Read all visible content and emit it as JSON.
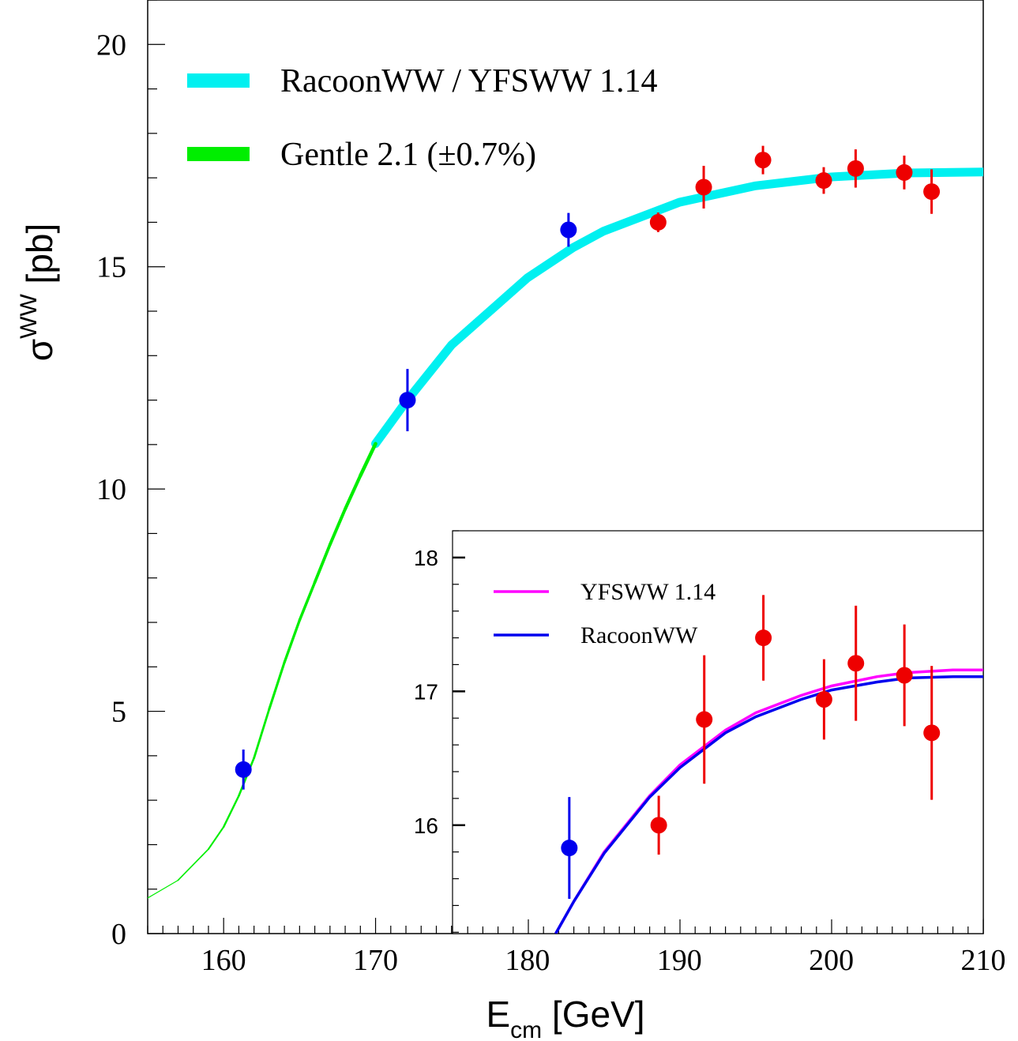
{
  "chart_data": [
    {
      "type": "scatter",
      "x_ticks": [
        "160",
        "170",
        "180",
        "190",
        "200",
        "210"
      ],
      "y_ticks": [
        "0",
        "5",
        "10",
        "15",
        "20"
      ],
      "xlim": [
        155,
        210
      ],
      "ylim": [
        0,
        21
      ],
      "xlabel": {
        "main": "E",
        "sub": "cm",
        "unit": " [GeV]"
      },
      "ylabel": {
        "main": "σ",
        "sup": "WW",
        "unit": " [pb]"
      },
      "grid": false,
      "legend": [
        {
          "label": "RacoonWW / YFSWW 1.14",
          "color": "#00f0f0"
        },
        {
          "label": "Gentle 2.1 (±0.7%)",
          "color": "#00ee00"
        }
      ],
      "series": [
        {
          "name": "RacoonWW / YFSWW 1.14",
          "kind": "band",
          "color": "#00f0f0",
          "x": [
            170,
            172,
            175,
            180,
            183,
            185,
            190,
            195,
            200,
            205,
            210
          ],
          "y": [
            11.02,
            11.96,
            13.24,
            14.75,
            15.43,
            15.8,
            16.45,
            16.82,
            17.02,
            17.11,
            17.13
          ]
        },
        {
          "name": "Gentle 2.1 (±0.7%)",
          "kind": "line",
          "color": "#00ee00",
          "x": [
            155,
            157,
            159,
            160,
            161,
            162,
            163,
            164,
            165,
            166,
            167,
            168,
            169,
            170
          ],
          "y": [
            0.8,
            1.2,
            1.9,
            2.4,
            3.1,
            3.95,
            5.05,
            6.1,
            7.05,
            7.9,
            8.75,
            9.55,
            10.3,
            11.02
          ]
        },
        {
          "name": "blue data",
          "kind": "points",
          "color": "#0000ee",
          "x": [
            161.3,
            172.1,
            182.7
          ],
          "y": [
            3.69,
            12.0,
            15.83
          ],
          "err": [
            0.45,
            0.7,
            0.38
          ]
        },
        {
          "name": "red data",
          "kind": "points",
          "color": "#ee0000",
          "x": [
            188.6,
            191.6,
            195.5,
            199.5,
            201.6,
            204.8,
            206.6
          ],
          "y": [
            16.0,
            16.79,
            17.4,
            16.94,
            17.21,
            17.12,
            16.69
          ],
          "err": [
            0.22,
            0.48,
            0.32,
            0.3,
            0.43,
            0.38,
            0.5
          ]
        }
      ]
    },
    {
      "type": "scatter",
      "y_ticks": [
        "16",
        "17",
        "18"
      ],
      "xlim": [
        175,
        210
      ],
      "ylim": [
        15.19,
        18.2
      ],
      "grid": false,
      "legend": [
        {
          "label": "YFSWW 1.14",
          "color": "#ff00ff"
        },
        {
          "label": "RacoonWW",
          "color": "#0000ee"
        }
      ],
      "series": [
        {
          "name": "YFSWW 1.14",
          "kind": "line",
          "color": "#ff00ff",
          "x": [
            181.8,
            183,
            185,
            188,
            190,
            193,
            195,
            198,
            200,
            203,
            205,
            208,
            210
          ],
          "y": [
            15.19,
            15.43,
            15.8,
            16.22,
            16.45,
            16.71,
            16.84,
            16.97,
            17.04,
            17.11,
            17.14,
            17.16,
            17.16
          ]
        },
        {
          "name": "RacoonWW",
          "kind": "line",
          "color": "#0000ee",
          "x": [
            181.8,
            183,
            185,
            188,
            190,
            193,
            195,
            198,
            200,
            203,
            205,
            208,
            210
          ],
          "y": [
            15.19,
            15.43,
            15.79,
            16.21,
            16.43,
            16.69,
            16.81,
            16.94,
            17.01,
            17.07,
            17.1,
            17.11,
            17.11
          ]
        },
        {
          "name": "blue data",
          "kind": "points",
          "color": "#0000ee",
          "x": [
            182.7
          ],
          "y": [
            15.83
          ],
          "err": [
            0.38
          ]
        },
        {
          "name": "red data",
          "kind": "points",
          "color": "#ee0000",
          "x": [
            188.6,
            191.6,
            195.5,
            199.5,
            201.6,
            204.8,
            206.6
          ],
          "y": [
            16.0,
            16.79,
            17.4,
            16.94,
            17.21,
            17.12,
            16.69
          ],
          "err": [
            0.22,
            0.48,
            0.32,
            0.3,
            0.43,
            0.38,
            0.5
          ]
        }
      ]
    }
  ]
}
